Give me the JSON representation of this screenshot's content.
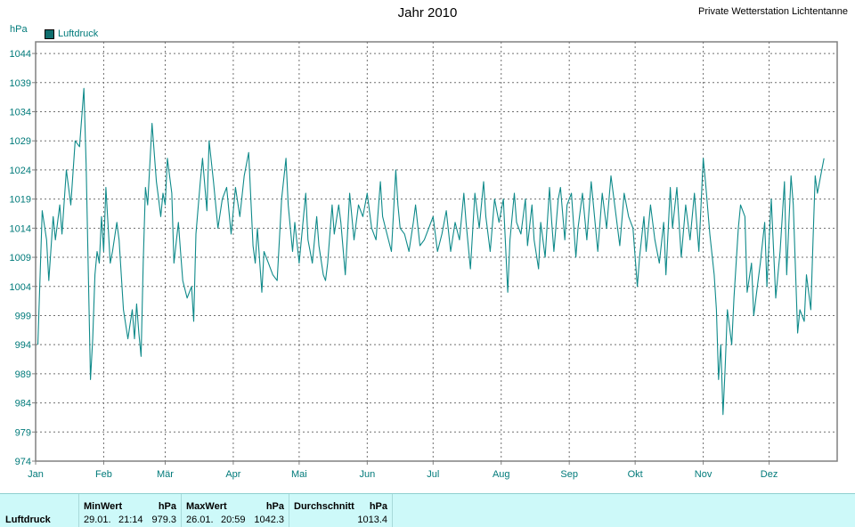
{
  "header": {
    "title": "Jahr 2010",
    "station": "Private Wetterstation Lichtentanne",
    "unit": "hPa"
  },
  "chart_data": {
    "type": "line",
    "title": "Jahr 2010",
    "ylabel": "hPa",
    "ylim": [
      974,
      1046
    ],
    "yticks": [
      974,
      979,
      984,
      989,
      994,
      999,
      1004,
      1009,
      1014,
      1019,
      1024,
      1029,
      1034,
      1039,
      1044
    ],
    "xticks": [
      "Jan",
      "Feb",
      "Mär",
      "Apr",
      "Mai",
      "Jun",
      "Jul",
      "Aug",
      "Sep",
      "Okt",
      "Nov",
      "Dez"
    ],
    "grid": true,
    "legend": "top-left",
    "series": [
      {
        "name": "Luftdruck",
        "color": "#0f8a8a",
        "points": [
          [
            1,
            994
          ],
          [
            3,
            1017
          ],
          [
            5,
            1012
          ],
          [
            6,
            1005
          ],
          [
            8,
            1016
          ],
          [
            9,
            1012
          ],
          [
            11,
            1018
          ],
          [
            12,
            1013
          ],
          [
            14,
            1024
          ],
          [
            16,
            1018
          ],
          [
            18,
            1029
          ],
          [
            20,
            1028
          ],
          [
            22,
            1038
          ],
          [
            23,
            1025
          ],
          [
            25,
            988
          ],
          [
            26,
            995
          ],
          [
            27,
            1006
          ],
          [
            28,
            1010
          ],
          [
            29,
            1008
          ],
          [
            30,
            1016
          ],
          [
            31,
            1010
          ],
          [
            32,
            1021
          ],
          [
            34,
            1008
          ],
          [
            35,
            1010
          ],
          [
            37,
            1015
          ],
          [
            38,
            1012
          ],
          [
            40,
            1000
          ],
          [
            42,
            995
          ],
          [
            44,
            1000
          ],
          [
            45,
            995
          ],
          [
            46,
            1001
          ],
          [
            47,
            996
          ],
          [
            48,
            992
          ],
          [
            49,
            1008
          ],
          [
            50,
            1021
          ],
          [
            51,
            1018
          ],
          [
            53,
            1032
          ],
          [
            55,
            1022
          ],
          [
            56,
            1019
          ],
          [
            57,
            1016
          ],
          [
            58,
            1020
          ],
          [
            59,
            1018
          ],
          [
            60,
            1026
          ],
          [
            62,
            1020
          ],
          [
            63,
            1008
          ],
          [
            65,
            1015
          ],
          [
            66,
            1010
          ],
          [
            67,
            1005
          ],
          [
            69,
            1002
          ],
          [
            71,
            1004
          ],
          [
            72,
            998
          ],
          [
            73,
            1013
          ],
          [
            75,
            1022
          ],
          [
            76,
            1026
          ],
          [
            78,
            1017
          ],
          [
            79,
            1029
          ],
          [
            81,
            1022
          ],
          [
            83,
            1014
          ],
          [
            85,
            1019
          ],
          [
            87,
            1021
          ],
          [
            89,
            1013
          ],
          [
            91,
            1021
          ],
          [
            93,
            1016
          ],
          [
            95,
            1023
          ],
          [
            97,
            1027
          ],
          [
            99,
            1011
          ],
          [
            100,
            1008
          ],
          [
            101,
            1014
          ],
          [
            103,
            1003
          ],
          [
            104,
            1010
          ],
          [
            106,
            1008
          ],
          [
            108,
            1006
          ],
          [
            110,
            1005
          ],
          [
            112,
            1019
          ],
          [
            114,
            1026
          ],
          [
            115,
            1018
          ],
          [
            117,
            1010
          ],
          [
            118,
            1015
          ],
          [
            120,
            1008
          ],
          [
            122,
            1016
          ],
          [
            123,
            1020
          ],
          [
            124,
            1012
          ],
          [
            126,
            1008
          ],
          [
            128,
            1016
          ],
          [
            129,
            1011
          ],
          [
            131,
            1006
          ],
          [
            132,
            1005
          ],
          [
            133,
            1008
          ],
          [
            135,
            1018
          ],
          [
            136,
            1013
          ],
          [
            138,
            1018
          ],
          [
            139,
            1015
          ],
          [
            141,
            1006
          ],
          [
            143,
            1020
          ],
          [
            145,
            1012
          ],
          [
            147,
            1018
          ],
          [
            149,
            1016
          ],
          [
            151,
            1020
          ],
          [
            153,
            1014
          ],
          [
            155,
            1012
          ],
          [
            157,
            1022
          ],
          [
            158,
            1016
          ],
          [
            160,
            1013
          ],
          [
            162,
            1010
          ],
          [
            164,
            1024
          ],
          [
            165,
            1018
          ],
          [
            166,
            1014
          ],
          [
            168,
            1013
          ],
          [
            170,
            1010
          ],
          [
            172,
            1015
          ],
          [
            173,
            1018
          ],
          [
            175,
            1011
          ],
          [
            177,
            1012
          ],
          [
            179,
            1014
          ],
          [
            181,
            1016
          ],
          [
            183,
            1010
          ],
          [
            185,
            1013
          ],
          [
            187,
            1017
          ],
          [
            189,
            1010
          ],
          [
            191,
            1015
          ],
          [
            193,
            1012
          ],
          [
            195,
            1020
          ],
          [
            196,
            1015
          ],
          [
            198,
            1007
          ],
          [
            200,
            1020
          ],
          [
            202,
            1014
          ],
          [
            204,
            1022
          ],
          [
            205,
            1016
          ],
          [
            207,
            1010
          ],
          [
            209,
            1019
          ],
          [
            211,
            1015
          ],
          [
            213,
            1019
          ],
          [
            215,
            1003
          ],
          [
            216,
            1012
          ],
          [
            218,
            1020
          ],
          [
            219,
            1015
          ],
          [
            221,
            1013
          ],
          [
            223,
            1019
          ],
          [
            224,
            1011
          ],
          [
            226,
            1018
          ],
          [
            227,
            1012
          ],
          [
            229,
            1007
          ],
          [
            230,
            1015
          ],
          [
            232,
            1009
          ],
          [
            234,
            1021
          ],
          [
            235,
            1015
          ],
          [
            236,
            1010
          ],
          [
            238,
            1019
          ],
          [
            239,
            1021
          ],
          [
            241,
            1012
          ],
          [
            242,
            1018
          ],
          [
            244,
            1020
          ],
          [
            246,
            1009
          ],
          [
            247,
            1014
          ],
          [
            249,
            1020
          ],
          [
            251,
            1012
          ],
          [
            253,
            1022
          ],
          [
            254,
            1018
          ],
          [
            256,
            1010
          ],
          [
            258,
            1020
          ],
          [
            260,
            1014
          ],
          [
            262,
            1023
          ],
          [
            264,
            1017
          ],
          [
            266,
            1011
          ],
          [
            268,
            1020
          ],
          [
            270,
            1016
          ],
          [
            272,
            1014
          ],
          [
            274,
            1004
          ],
          [
            275,
            1009
          ],
          [
            277,
            1016
          ],
          [
            278,
            1010
          ],
          [
            280,
            1018
          ],
          [
            282,
            1012
          ],
          [
            284,
            1008
          ],
          [
            286,
            1015
          ],
          [
            287,
            1006
          ],
          [
            289,
            1021
          ],
          [
            290,
            1014
          ],
          [
            292,
            1021
          ],
          [
            294,
            1009
          ],
          [
            296,
            1018
          ],
          [
            298,
            1012
          ],
          [
            300,
            1020
          ],
          [
            302,
            1010
          ],
          [
            304,
            1026
          ],
          [
            305,
            1022
          ],
          [
            307,
            1013
          ],
          [
            309,
            1006
          ],
          [
            310,
            1000
          ],
          [
            311,
            988
          ],
          [
            312,
            994
          ],
          [
            313,
            982
          ],
          [
            314,
            990
          ],
          [
            315,
            1000
          ],
          [
            317,
            994
          ],
          [
            318,
            1002
          ],
          [
            320,
            1014
          ],
          [
            321,
            1018
          ],
          [
            323,
            1016
          ],
          [
            324,
            1003
          ],
          [
            326,
            1008
          ],
          [
            327,
            999
          ],
          [
            329,
            1005
          ],
          [
            330,
            1008
          ],
          [
            332,
            1015
          ],
          [
            333,
            1004
          ],
          [
            334,
            1012
          ],
          [
            335,
            1019
          ],
          [
            337,
            1002
          ],
          [
            339,
            1010
          ],
          [
            341,
            1022
          ],
          [
            342,
            1006
          ],
          [
            343,
            1015
          ],
          [
            344,
            1023
          ],
          [
            345,
            1018
          ],
          [
            347,
            996
          ],
          [
            348,
            1000
          ],
          [
            350,
            998
          ],
          [
            351,
            1006
          ],
          [
            353,
            1000
          ],
          [
            354,
            1012
          ],
          [
            355,
            1023
          ],
          [
            356,
            1020
          ],
          [
            358,
            1024
          ],
          [
            359,
            1026
          ]
        ]
      }
    ]
  },
  "stats": {
    "row_label": "Luftdruck",
    "min": {
      "header": "MinWert",
      "unit": "hPa",
      "date": "29.01.",
      "time": "21:14",
      "value": "979.3"
    },
    "max": {
      "header": "MaxWert",
      "unit": "hPa",
      "date": "26.01.",
      "time": "20:59",
      "value": "1042.3"
    },
    "avg": {
      "header": "Durchschnitt",
      "unit": "hPa",
      "value": "1013.4"
    }
  }
}
